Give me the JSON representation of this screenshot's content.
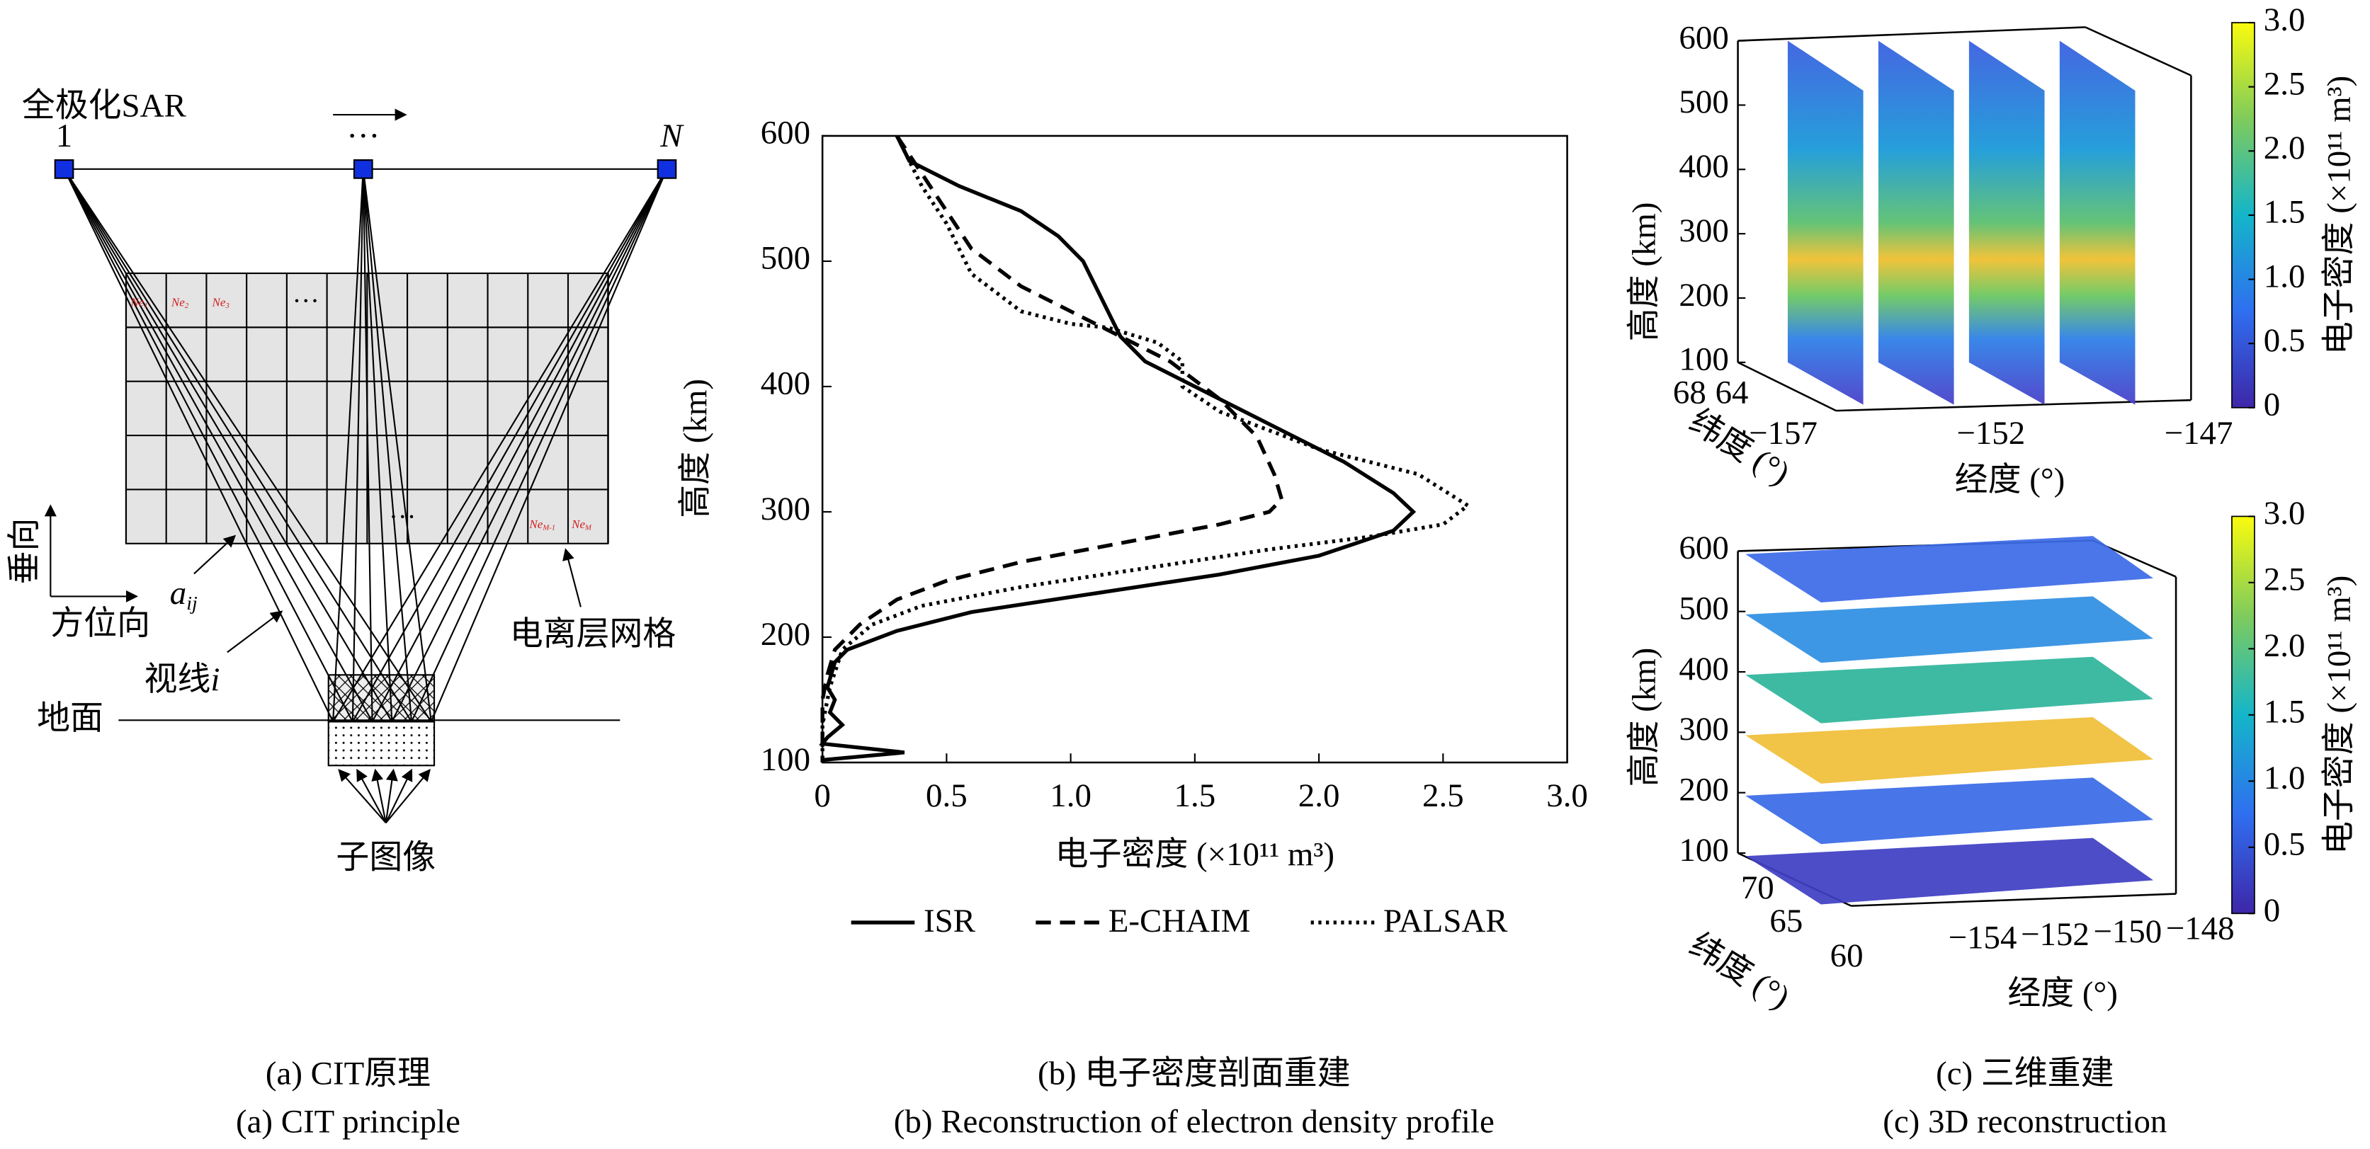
{
  "diagram": {
    "sar_label": "全极化SAR",
    "node_labels": [
      "1",
      "···",
      "N"
    ],
    "vertical": "垂向",
    "azimuth": "方位向",
    "aij": "a",
    "aij_sub": "ij",
    "los": "视线",
    "los_i": "i",
    "ground": "地面",
    "grid_label": "电离层网格",
    "subimage": "子图像",
    "cells": [
      {
        "text": "Ne",
        "sub": "1"
      },
      {
        "text": "Ne",
        "sub": "2"
      },
      {
        "text": "Ne",
        "sub": "3"
      },
      {
        "text": "Ne",
        "sub": "M-1"
      },
      {
        "text": "Ne",
        "sub": "M"
      }
    ],
    "ellipsis": [
      "···",
      "···"
    ]
  },
  "captions": [
    [
      "(a) CIT原理",
      "(a) CIT principle"
    ],
    [
      "(b) 电子密度剖面重建",
      "(b) Reconstruction of electron density profile"
    ],
    [
      "(c) 三维重建",
      "(c) 3D reconstruction"
    ]
  ],
  "chart_data": [
    {
      "type": "line",
      "xlabel": "电子密度 (×10¹¹ m³)",
      "ylabel": "高度 (km)",
      "xlim": [
        0,
        3
      ],
      "ylim": [
        100,
        600
      ],
      "xticks": [
        0,
        0.5,
        {
          "value": 1,
          "label": "1.0"
        },
        1.5,
        {
          "value": 2,
          "label": "2.0"
        },
        2.5,
        {
          "value": 3,
          "label": "3.0"
        }
      ],
      "yticks": [
        100,
        200,
        300,
        400,
        500,
        600
      ],
      "legend": "bottom",
      "series": [
        {
          "name": "ISR",
          "color": "#000000",
          "dash": "solid",
          "x": [
            0.3,
            0.35,
            0.55,
            0.8,
            0.95,
            1.05,
            1.1,
            1.15,
            1.2,
            1.3,
            1.5,
            1.8,
            2.1,
            2.3,
            2.38,
            2.3,
            2.0,
            1.6,
            1.1,
            0.6,
            0.3,
            0.1,
            0.05,
            0.02,
            0.05,
            0.03,
            0.08,
            0.02,
            0.0,
            0.33,
            0.0
          ],
          "y": [
            600,
            580,
            560,
            540,
            520,
            500,
            480,
            460,
            440,
            420,
            400,
            370,
            340,
            315,
            300,
            285,
            265,
            250,
            235,
            220,
            205,
            190,
            180,
            160,
            150,
            140,
            130,
            120,
            115,
            108,
            102
          ]
        },
        {
          "name": "E-CHAIM",
          "color": "#000000",
          "dash": "dashed",
          "x": [
            0.3,
            0.4,
            0.5,
            0.6,
            0.8,
            1.0,
            1.2,
            1.4,
            1.6,
            1.75,
            1.82,
            1.85,
            1.8,
            1.6,
            1.2,
            0.8,
            0.5,
            0.3,
            0.15,
            0.05,
            0.02,
            0.0,
            0.0
          ],
          "y": [
            600,
            570,
            540,
            510,
            480,
            460,
            440,
            420,
            390,
            360,
            330,
            310,
            300,
            290,
            275,
            260,
            245,
            230,
            210,
            190,
            170,
            150,
            100
          ]
        },
        {
          "name": "PALSAR",
          "color": "#000000",
          "dash": "dotted",
          "x": [
            0.3,
            0.4,
            0.5,
            0.6,
            0.8,
            1.0,
            1.15,
            1.35,
            1.45,
            1.45,
            1.6,
            2.0,
            2.4,
            2.6,
            2.5,
            2.2,
            1.8,
            1.3,
            0.8,
            0.4,
            0.2,
            0.08,
            0.03,
            0.0,
            0.0
          ],
          "y": [
            600,
            560,
            530,
            490,
            460,
            450,
            447,
            435,
            420,
            400,
            380,
            350,
            330,
            305,
            290,
            280,
            270,
            255,
            240,
            225,
            210,
            190,
            160,
            130,
            100
          ]
        }
      ]
    },
    {
      "type": "slices3d",
      "slice_axis": "longitude",
      "slices": [
        -157,
        -155,
        -153,
        -151
      ],
      "zlabel": "高度 (km)",
      "xlabel": "经度 (°)",
      "ylabel": "纬度 (°)",
      "zlim": [
        100,
        600
      ],
      "zticks": [
        100,
        200,
        300,
        400,
        500,
        600
      ],
      "xticks": [
        {
          "value": -157,
          "label": "−157"
        },
        {
          "value": -152,
          "label": "−152"
        },
        {
          "value": -147,
          "label": "−147"
        }
      ],
      "yticks": [
        68,
        64
      ],
      "colorbar": {
        "label": "电子密度 (×10¹¹ m³)",
        "clim": [
          0,
          3
        ],
        "ticks": [
          0,
          0.5,
          {
            "value": 1,
            "label": "1.0"
          },
          1.5,
          {
            "value": 2,
            "label": "2.0"
          },
          2.5,
          {
            "value": 3,
            "label": "3.0"
          }
        ]
      }
    },
    {
      "type": "slices3d",
      "slice_axis": "altitude",
      "slices": [
        100,
        200,
        300,
        400,
        500,
        600
      ],
      "slice_colors": [
        "#3f3fc4",
        "#3a6ae6",
        "#f0be38",
        "#2fb59c",
        "#2f8fe2",
        "#3d6ce8"
      ],
      "zlabel": "高度 (km)",
      "xlabel": "经度 (°)",
      "ylabel": "纬度 (°)",
      "zlim": [
        100,
        600
      ],
      "zticks": [
        100,
        200,
        300,
        400,
        500,
        600
      ],
      "xticks": [
        {
          "value": -154,
          "label": "−154"
        },
        {
          "value": -152,
          "label": "−152"
        },
        {
          "value": -150,
          "label": "−150"
        },
        {
          "value": -148,
          "label": "−148"
        }
      ],
      "yticks": [
        70,
        65,
        60
      ],
      "colorbar": {
        "label": "电子密度 (×10¹¹ m³)",
        "clim": [
          0,
          3
        ],
        "ticks": [
          0,
          0.5,
          {
            "value": 1,
            "label": "1.0"
          },
          1.5,
          {
            "value": 2,
            "label": "2.0"
          },
          2.5,
          {
            "value": 3,
            "label": "3.0"
          }
        ]
      }
    }
  ]
}
